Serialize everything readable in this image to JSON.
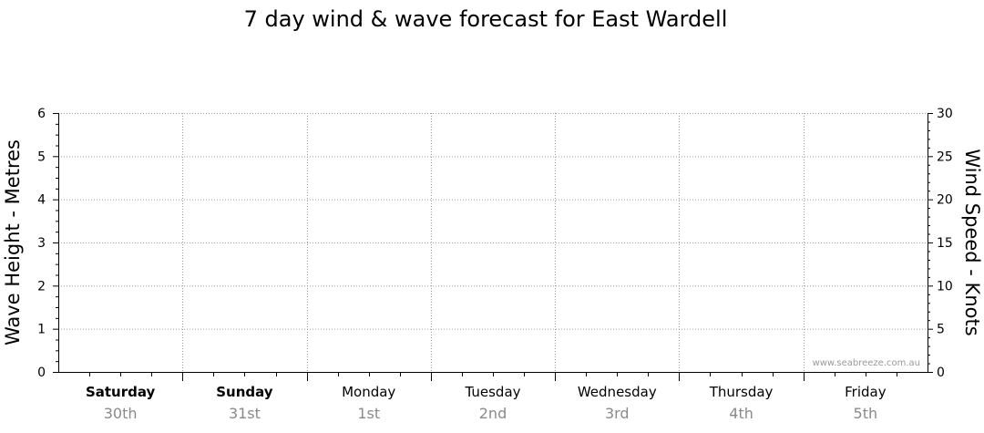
{
  "chart_data": {
    "type": "line",
    "title": "7 day wind & wave forecast for East Wardell",
    "ylabel_left": "Wave Height - Metres",
    "ylabel_right": "Wind Speed - Knots",
    "ylim_left": [
      0,
      6
    ],
    "ylim_right": [
      0,
      30
    ],
    "yticks_left": [
      "0",
      "1",
      "2",
      "3",
      "4",
      "5",
      "6"
    ],
    "yticks_right": [
      "0",
      "5",
      "10",
      "15",
      "20",
      "25",
      "30"
    ],
    "days": [
      {
        "day": "Saturday",
        "date": "30th",
        "bold": true
      },
      {
        "day": "Sunday",
        "date": "31st",
        "bold": true
      },
      {
        "day": "Monday",
        "date": "1st",
        "bold": false
      },
      {
        "day": "Tuesday",
        "date": "2nd",
        "bold": false
      },
      {
        "day": "Wednesday",
        "date": "3rd",
        "bold": false
      },
      {
        "day": "Thursday",
        "date": "4th",
        "bold": false
      },
      {
        "day": "Friday",
        "date": "5th",
        "bold": false
      }
    ],
    "series": [],
    "grid": true,
    "watermark": "www.seabreeze.com.au"
  }
}
